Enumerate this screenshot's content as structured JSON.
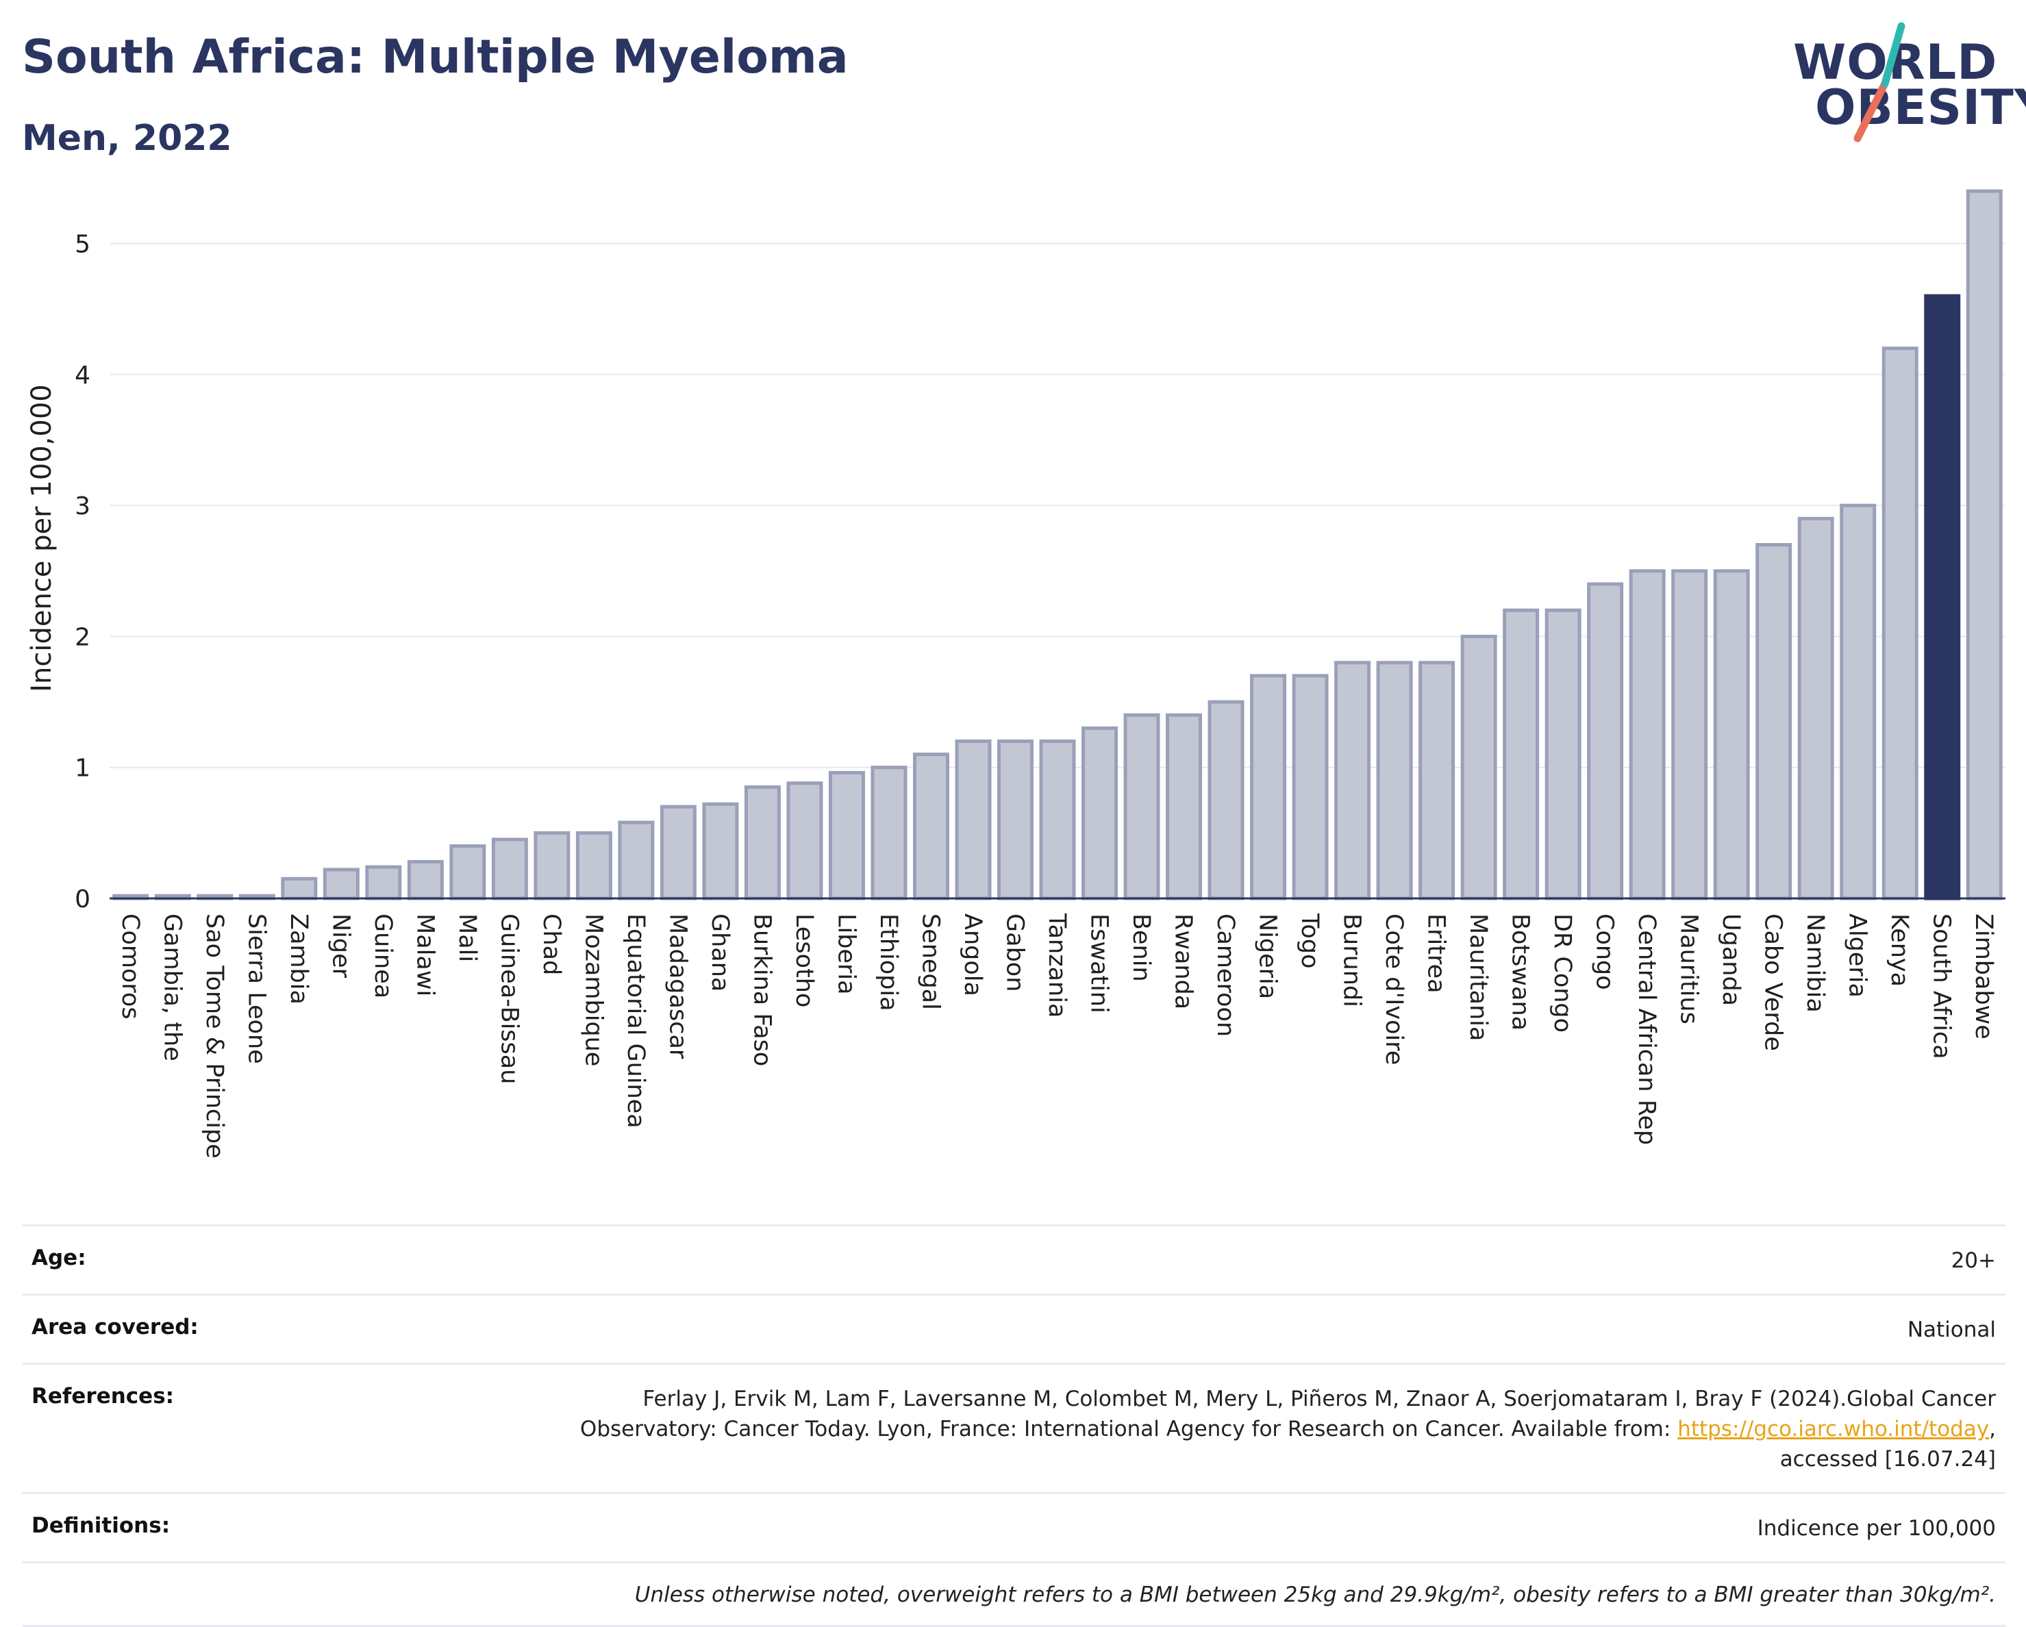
{
  "header": {
    "title": "South Africa: Multiple Myeloma",
    "subtitle": "Men, 2022"
  },
  "logo": {
    "line1": "WORLD",
    "line2": "OBESITY",
    "colors": {
      "navy": "#2b3561",
      "teal": "#2fb8b0",
      "coral": "#e8705a"
    }
  },
  "chart_data": {
    "type": "bar",
    "title": "South Africa: Multiple Myeloma",
    "subtitle": "Men, 2022",
    "ylabel": "Incidence per 100,000",
    "xlabel": "",
    "ylim": [
      0,
      5.5
    ],
    "yticks": [
      0,
      1,
      2,
      3,
      4,
      5
    ],
    "grid": true,
    "highlight": "South Africa",
    "colors": {
      "bar": "#c3c7d4",
      "bar_border": "#9aa0b8",
      "highlight": "#2b3561",
      "grid": "#e6e8ee"
    },
    "categories": [
      "Comoros",
      "Gambia, the",
      "Sao Tome & Principe",
      "Sierra Leone",
      "Zambia",
      "Niger",
      "Guinea",
      "Malawi",
      "Mali",
      "Guinea-Bissau",
      "Chad",
      "Mozambique",
      "Equatorial Guinea",
      "Madagascar",
      "Ghana",
      "Burkina Faso",
      "Lesotho",
      "Liberia",
      "Ethiopia",
      "Senegal",
      "Angola",
      "Gabon",
      "Tanzania",
      "Eswatini",
      "Benin",
      "Rwanda",
      "Cameroon",
      "Nigeria",
      "Togo",
      "Burundi",
      "Cote d'Ivoire",
      "Eritrea",
      "Mauritania",
      "Botswana",
      "DR Congo",
      "Congo",
      "Central African Rep",
      "Mauritius",
      "Uganda",
      "Cabo Verde",
      "Namibia",
      "Algeria",
      "Kenya",
      "South Africa",
      "Zimbabwe"
    ],
    "values": [
      0.02,
      0.02,
      0.02,
      0.02,
      0.15,
      0.22,
      0.24,
      0.28,
      0.4,
      0.45,
      0.5,
      0.5,
      0.58,
      0.7,
      0.72,
      0.85,
      0.88,
      0.96,
      1.0,
      1.1,
      1.2,
      1.2,
      1.2,
      1.3,
      1.4,
      1.4,
      1.5,
      1.7,
      1.7,
      1.8,
      1.8,
      1.8,
      2.0,
      2.2,
      2.2,
      2.4,
      2.5,
      2.5,
      2.5,
      2.7,
      2.9,
      3.0,
      4.2,
      4.6,
      5.4
    ]
  },
  "info": {
    "age_label": "Age:",
    "age_value": "20+",
    "area_label": "Area covered:",
    "area_value": "National",
    "references_label": "References:",
    "references_line1": "Ferlay J, Ervik M, Lam F, Laversanne M, Colombet M, Mery L, Piñeros M, Znaor A, Soerjomataram I, Bray F (2024).Global Cancer",
    "references_line2_pre": "Observatory: Cancer Today. Lyon, France: International Agency for Research on Cancer. Available from: ",
    "references_link": "https://gco.iarc.who.int/today",
    "references_line2_post": ",",
    "references_line3": "accessed [16.07.24]",
    "definitions_label": "Definitions:",
    "definitions_value": "Indicence per 100,000",
    "note": "Unless otherwise noted, overweight refers to a BMI between 25kg and 29.9kg/m², obesity refers to a BMI greater than 30kg/m²."
  }
}
